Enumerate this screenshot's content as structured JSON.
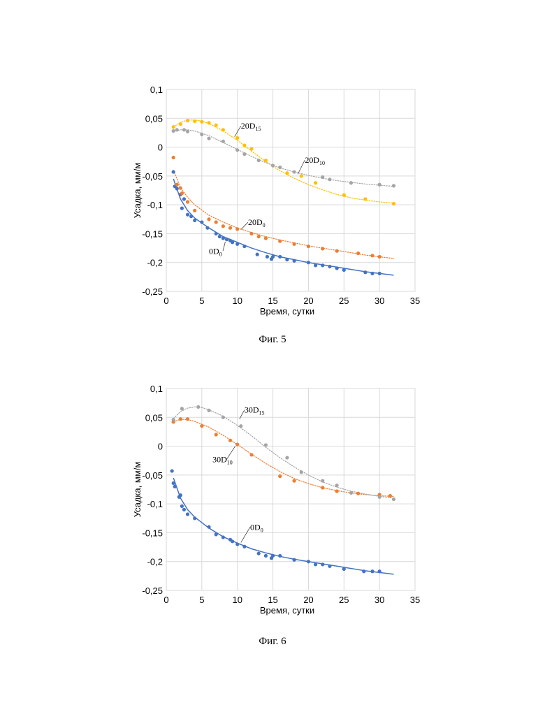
{
  "chart_data": [
    {
      "type": "scatter",
      "xlabel": "Время, сутки",
      "ylabel": "Усадка, мм/м",
      "xlim": [
        0,
        35
      ],
      "ylim": [
        -0.25,
        0.1
      ],
      "xticks": [
        0,
        5,
        10,
        15,
        20,
        25,
        30,
        35
      ],
      "xtick_labels": [
        "0",
        "5",
        "10",
        "15",
        "20",
        "25",
        "30",
        "35"
      ],
      "yticks": [
        0.1,
        0.05,
        0,
        -0.05,
        -0.1,
        -0.15,
        -0.2,
        -0.25
      ],
      "ytick_labels": [
        "0,1",
        "0,05",
        "0",
        "-0,05",
        "-0,1",
        "-0,15",
        "-0,2",
        "-0,25"
      ],
      "grid": true,
      "series": [
        {
          "name": "0D0",
          "label_main": "0D",
          "label_sub": "0",
          "color": "#4472C4",
          "trend": "solid",
          "x": [
            1,
            1.2,
            1.5,
            2,
            2.2,
            2.5,
            3,
            3.5,
            4,
            5,
            5.8,
            7,
            7.5,
            8,
            8.5,
            9,
            9.3,
            10,
            11,
            12.8,
            14.2,
            14.8,
            15,
            16,
            17,
            18,
            20,
            21,
            22,
            23,
            24,
            25,
            28,
            29,
            30
          ],
          "y": [
            -0.043,
            -0.068,
            -0.072,
            -0.082,
            -0.106,
            -0.09,
            -0.117,
            -0.12,
            -0.127,
            -0.13,
            -0.14,
            -0.15,
            -0.155,
            -0.158,
            -0.16,
            -0.162,
            -0.165,
            -0.168,
            -0.172,
            -0.186,
            -0.19,
            -0.194,
            -0.19,
            -0.19,
            -0.195,
            -0.197,
            -0.2,
            -0.205,
            -0.205,
            -0.207,
            -0.21,
            -0.213,
            -0.217,
            -0.219,
            -0.219
          ],
          "trend_x": [
            1,
            2,
            3,
            4,
            6,
            8,
            10,
            12,
            14,
            16,
            18,
            20,
            22,
            24,
            26,
            28,
            30,
            32
          ],
          "trend_y": [
            -0.055,
            -0.09,
            -0.11,
            -0.123,
            -0.14,
            -0.155,
            -0.165,
            -0.175,
            -0.183,
            -0.19,
            -0.195,
            -0.2,
            -0.204,
            -0.208,
            -0.212,
            -0.216,
            -0.219,
            -0.222
          ]
        },
        {
          "name": "20D0",
          "label_main": "20D",
          "label_sub": "0",
          "color": "#ED7D31",
          "trend": "dotted",
          "x": [
            1,
            1.5,
            2,
            2.2,
            3,
            4,
            6,
            7,
            8,
            9,
            10,
            12,
            13,
            14,
            16,
            18,
            20,
            22,
            24,
            27,
            29,
            30
          ],
          "y": [
            -0.018,
            -0.065,
            -0.071,
            -0.08,
            -0.095,
            -0.11,
            -0.125,
            -0.13,
            -0.137,
            -0.14,
            -0.142,
            -0.15,
            -0.155,
            -0.158,
            -0.163,
            -0.168,
            -0.172,
            -0.176,
            -0.18,
            -0.184,
            -0.188,
            -0.19
          ],
          "trend_x": [
            1,
            2,
            3,
            4,
            6,
            8,
            10,
            12,
            14,
            16,
            18,
            20,
            22,
            24,
            26,
            28,
            30,
            32
          ],
          "trend_y": [
            -0.04,
            -0.07,
            -0.087,
            -0.1,
            -0.118,
            -0.13,
            -0.14,
            -0.148,
            -0.155,
            -0.161,
            -0.166,
            -0.171,
            -0.175,
            -0.179,
            -0.183,
            -0.187,
            -0.19,
            -0.193
          ]
        },
        {
          "name": "20D15",
          "label_main": "20D",
          "label_sub": "15",
          "color": "#FFC000",
          "trend": "dotted",
          "x": [
            1,
            2,
            3,
            4,
            5,
            6,
            7,
            8,
            10,
            11,
            12,
            14,
            17,
            19,
            21,
            25,
            28,
            32
          ],
          "y": [
            0.035,
            0.04,
            0.046,
            0.045,
            0.044,
            0.042,
            0.038,
            0.03,
            0.016,
            0.003,
            -0.003,
            -0.023,
            -0.045,
            -0.05,
            -0.062,
            -0.083,
            -0.09,
            -0.098
          ],
          "trend_x": [
            1,
            2,
            3,
            4,
            5,
            6,
            8,
            10,
            12,
            14,
            16,
            18,
            20,
            22,
            24,
            26,
            28,
            30,
            32
          ],
          "trend_y": [
            0.035,
            0.043,
            0.047,
            0.047,
            0.045,
            0.041,
            0.028,
            0.012,
            -0.007,
            -0.025,
            -0.041,
            -0.054,
            -0.065,
            -0.074,
            -0.082,
            -0.088,
            -0.092,
            -0.095,
            -0.097
          ]
        },
        {
          "name": "20D10",
          "label_main": "20D",
          "label_sub": "10",
          "color": "#A5A5A5",
          "trend": "dotted",
          "x": [
            1,
            1.5,
            2.5,
            3,
            5,
            6,
            8,
            10,
            11,
            13,
            15,
            16,
            18,
            22,
            23,
            26,
            30,
            32
          ],
          "y": [
            0.028,
            0.03,
            0.03,
            0.027,
            0.022,
            0.015,
            0.01,
            -0.005,
            -0.012,
            -0.023,
            -0.032,
            -0.035,
            -0.043,
            -0.052,
            -0.056,
            -0.062,
            -0.065,
            -0.067
          ],
          "trend_x": [
            1,
            2,
            3,
            4,
            6,
            8,
            10,
            12,
            14,
            16,
            18,
            20,
            22,
            24,
            26,
            28,
            30,
            32
          ],
          "trend_y": [
            0.027,
            0.03,
            0.03,
            0.028,
            0.02,
            0.008,
            -0.004,
            -0.016,
            -0.027,
            -0.036,
            -0.043,
            -0.049,
            -0.054,
            -0.058,
            -0.061,
            -0.064,
            -0.066,
            -0.068
          ]
        }
      ],
      "annotations": [
        {
          "series": "20D15",
          "main": "20D",
          "sub": "15",
          "x": 10.5,
          "y": 0.032,
          "lx": 9.6,
          "ly": 0.018
        },
        {
          "series": "20D10",
          "main": "20D",
          "sub": "10",
          "x": 19.5,
          "y": -0.027,
          "lx": 18.5,
          "ly": -0.047
        },
        {
          "series": "20D0",
          "main": "20D",
          "sub": "0",
          "x": 11.5,
          "y": -0.135,
          "lx": 10.5,
          "ly": -0.143
        },
        {
          "series": "0D0",
          "main": "0D",
          "sub": "0",
          "x": 6,
          "y": -0.185,
          "lx": 8.3,
          "ly": -0.164
        }
      ]
    },
    {
      "type": "scatter",
      "xlabel": "Время, сутки",
      "ylabel": "Усадка, мм/м",
      "xlim": [
        0,
        35
      ],
      "ylim": [
        -0.25,
        0.1
      ],
      "xticks": [
        0,
        5,
        10,
        15,
        20,
        25,
        30,
        35
      ],
      "xtick_labels": [
        "0",
        "5",
        "10",
        "15",
        "20",
        "25",
        "30",
        "35"
      ],
      "yticks": [
        0.1,
        0.05,
        0,
        -0.05,
        -0.1,
        -0.15,
        -0.2,
        -0.25
      ],
      "ytick_labels": [
        "0,1",
        "0,05",
        "0",
        "-0,05",
        "-0,1",
        "-0,15",
        "-0,2",
        "-0,25"
      ],
      "grid": true,
      "series": [
        {
          "name": "0D0",
          "label_main": "0D",
          "label_sub": "0",
          "color": "#4472C4",
          "trend": "solid",
          "x": [
            0.8,
            1,
            1.2,
            1.8,
            2,
            2.2,
            2.5,
            3,
            4,
            6,
            7,
            8,
            9,
            9.3,
            10,
            11,
            13,
            14,
            14.8,
            15,
            16,
            18,
            20,
            21,
            22,
            23,
            25,
            27.8,
            29,
            30
          ],
          "y": [
            -0.043,
            -0.064,
            -0.07,
            -0.088,
            -0.085,
            -0.104,
            -0.11,
            -0.118,
            -0.125,
            -0.14,
            -0.153,
            -0.158,
            -0.162,
            -0.165,
            -0.17,
            -0.174,
            -0.186,
            -0.19,
            -0.194,
            -0.19,
            -0.19,
            -0.197,
            -0.2,
            -0.205,
            -0.205,
            -0.208,
            -0.213,
            -0.217,
            -0.217,
            -0.217
          ],
          "trend_x": [
            1,
            2,
            3,
            4,
            6,
            8,
            10,
            12,
            14,
            16,
            18,
            20,
            22,
            24,
            26,
            28,
            30,
            32
          ],
          "trend_y": [
            -0.055,
            -0.09,
            -0.11,
            -0.123,
            -0.142,
            -0.157,
            -0.168,
            -0.178,
            -0.185,
            -0.191,
            -0.196,
            -0.2,
            -0.204,
            -0.208,
            -0.212,
            -0.216,
            -0.219,
            -0.222
          ]
        },
        {
          "name": "30D10",
          "label_main": "30D",
          "label_sub": "10",
          "color": "#ED7D31",
          "trend": "dotted",
          "x": [
            1,
            2,
            3,
            5,
            7,
            9,
            10,
            12,
            16,
            18,
            22,
            24,
            27,
            30,
            31.5
          ],
          "y": [
            0.042,
            0.047,
            0.047,
            0.035,
            0.02,
            0.01,
            0.003,
            -0.015,
            -0.052,
            -0.06,
            -0.072,
            -0.078,
            -0.082,
            -0.084,
            -0.086
          ],
          "trend_x": [
            1,
            2,
            3,
            4,
            6,
            8,
            10,
            12,
            14,
            16,
            18,
            20,
            22,
            24,
            26,
            28,
            30,
            32
          ],
          "trend_y": [
            0.042,
            0.047,
            0.046,
            0.043,
            0.033,
            0.019,
            0.003,
            -0.014,
            -0.03,
            -0.044,
            -0.056,
            -0.065,
            -0.072,
            -0.077,
            -0.081,
            -0.084,
            -0.086,
            -0.087
          ]
        },
        {
          "name": "30D15",
          "label_main": "30D",
          "label_sub": "15",
          "color": "#A5A5A5",
          "trend": "dotted",
          "x": [
            1,
            2.2,
            4.5,
            6,
            8,
            10.5,
            14,
            17,
            19,
            22,
            24,
            26,
            30,
            32
          ],
          "y": [
            0.046,
            0.065,
            0.068,
            0.062,
            0.05,
            0.035,
            0.002,
            -0.02,
            -0.045,
            -0.06,
            -0.068,
            -0.081,
            -0.088,
            -0.092
          ],
          "trend_x": [
            1,
            2,
            3,
            4,
            5,
            6,
            8,
            10,
            12,
            14,
            16,
            18,
            20,
            22,
            24,
            26,
            28,
            30,
            32
          ],
          "trend_y": [
            0.048,
            0.06,
            0.066,
            0.068,
            0.067,
            0.063,
            0.052,
            0.036,
            0.018,
            -0.002,
            -0.02,
            -0.036,
            -0.05,
            -0.062,
            -0.071,
            -0.078,
            -0.083,
            -0.087,
            -0.09
          ]
        }
      ],
      "annotations": [
        {
          "series": "30D15",
          "main": "30D",
          "sub": "15",
          "x": 11,
          "y": 0.058,
          "lx": 10.3,
          "ly": 0.047
        },
        {
          "series": "30D10",
          "main": "30D",
          "sub": "10",
          "x": 6.5,
          "y": -0.028,
          "lx": 9.7,
          "ly": 0.0
        },
        {
          "series": "0D0",
          "main": "0D",
          "sub": "0",
          "x": 11.8,
          "y": -0.145,
          "lx": 10.5,
          "ly": -0.167
        }
      ]
    }
  ],
  "captions": {
    "fig5": "Фиг. 5",
    "fig6": "Фиг. 6"
  }
}
